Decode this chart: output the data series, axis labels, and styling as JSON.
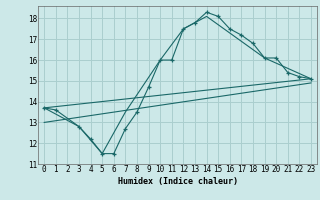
{
  "xlabel": "Humidex (Indice chaleur)",
  "ylabel": "",
  "background_color": "#cce8e8",
  "grid_color": "#aacece",
  "line_color": "#1a6868",
  "xlim": [
    -0.5,
    23.5
  ],
  "ylim": [
    11,
    18.6
  ],
  "yticks": [
    11,
    12,
    13,
    14,
    15,
    16,
    17,
    18
  ],
  "xticks": [
    0,
    1,
    2,
    3,
    4,
    5,
    6,
    7,
    8,
    9,
    10,
    11,
    12,
    13,
    14,
    15,
    16,
    17,
    18,
    19,
    20,
    21,
    22,
    23
  ],
  "series": [
    {
      "x": [
        0,
        1,
        3,
        4,
        5,
        6,
        7,
        8,
        9,
        10,
        11,
        12,
        13,
        14,
        15,
        16,
        17,
        18,
        19,
        20,
        21,
        22,
        23
      ],
      "y": [
        13.7,
        13.6,
        12.8,
        12.2,
        11.5,
        11.5,
        12.7,
        13.5,
        14.7,
        16.0,
        16.0,
        17.5,
        17.8,
        18.3,
        18.1,
        17.5,
        17.2,
        16.8,
        16.1,
        16.1,
        15.4,
        15.2,
        15.1
      ],
      "markers": true
    },
    {
      "x": [
        0,
        3,
        5,
        7,
        10,
        12,
        14,
        19,
        23
      ],
      "y": [
        13.7,
        12.8,
        11.5,
        13.5,
        16.0,
        17.5,
        18.1,
        16.1,
        15.1
      ],
      "markers": false
    },
    {
      "x": [
        0,
        23
      ],
      "y": [
        13.7,
        15.1
      ],
      "markers": false
    },
    {
      "x": [
        0,
        23
      ],
      "y": [
        13.0,
        14.9
      ],
      "markers": false
    }
  ]
}
